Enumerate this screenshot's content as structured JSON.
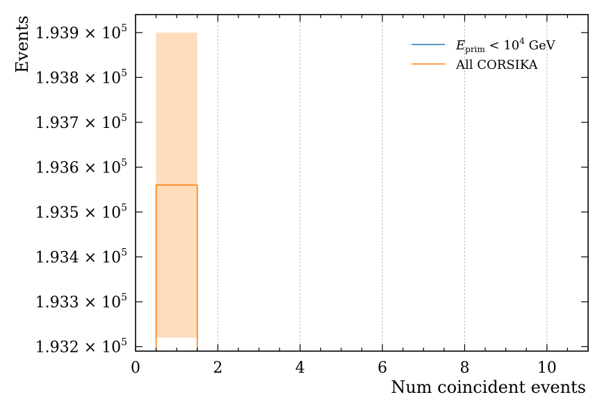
{
  "chart_data": {
    "type": "histogram",
    "xlabel": "Num coincident events",
    "ylabel": "Events",
    "xlim": [
      0,
      11
    ],
    "ylim": [
      193190,
      193940
    ],
    "x_ticks": [
      0,
      2,
      4,
      6,
      8,
      10
    ],
    "x_minor_step": 0.5,
    "y_ticks": [
      193200,
      193300,
      193400,
      193500,
      193600,
      193700,
      193800,
      193900
    ],
    "y_tick_labels": [
      "1.932",
      "1.933",
      "1.934",
      "1.935",
      "1.936",
      "1.937",
      "1.938",
      "1.939"
    ],
    "y_tick_suffix": "× 10",
    "y_tick_exponent": "5",
    "grid": "vertical dashed at major x ticks",
    "legend_position": "top-right",
    "series": [
      {
        "name": "E_prim < 10^4 GeV",
        "legend_main": "E",
        "legend_sub": "prim",
        "legend_mid": " < 10",
        "legend_sup": "4",
        "legend_tail": " GeV",
        "color": "#1f77b4",
        "style": "step",
        "bins": []
      },
      {
        "name": "All CORSIKA",
        "color": "#ff7f0e",
        "style": "step",
        "bins": [
          {
            "x0": 0.5,
            "x1": 1.5,
            "value": 193560
          }
        ],
        "error_band": {
          "x0": 0.5,
          "x1": 1.5,
          "low": 193220,
          "high": 193900,
          "color": "#ffdcbc"
        }
      }
    ]
  }
}
